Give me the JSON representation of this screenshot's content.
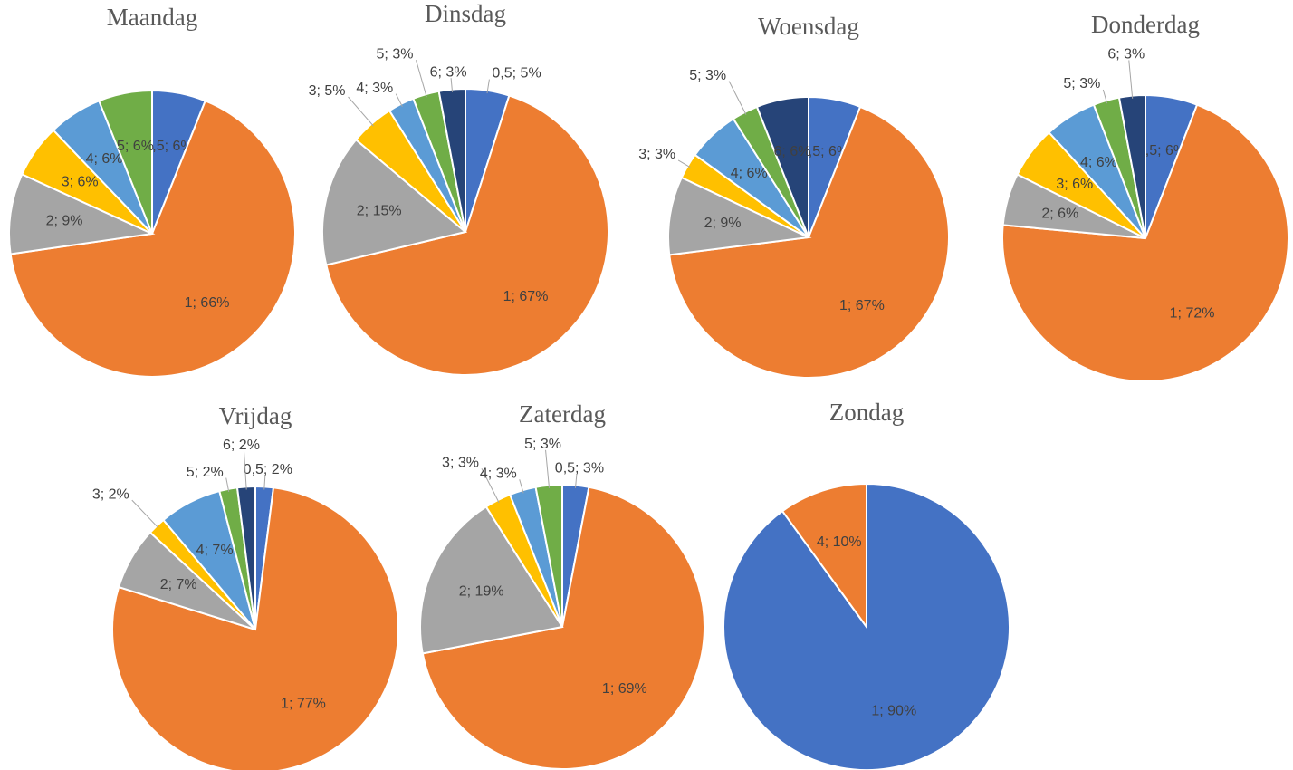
{
  "chart_data": [
    {
      "type": "pie",
      "title": "Maandag",
      "values": [
        6,
        66,
        9,
        6,
        6,
        6
      ],
      "value_labels": [
        "0,5; 6%",
        "1; 66%",
        "2; 9%",
        "3; 6%",
        "4; 6%",
        "5; 6%"
      ],
      "colors": [
        "#4472c4",
        "#ed7d31",
        "#a5a5a5",
        "#ffc000",
        "#5b9bd5",
        "#70ad47"
      ]
    },
    {
      "type": "pie",
      "title": "Dinsdag",
      "values": [
        5,
        67,
        15,
        5,
        3,
        3,
        3
      ],
      "value_labels": [
        "0,5; 5%",
        "1; 67%",
        "2; 15%",
        "3; 5%",
        "4; 3%",
        "5; 3%",
        "6; 3%"
      ],
      "colors": [
        "#4472c4",
        "#ed7d31",
        "#a5a5a5",
        "#ffc000",
        "#5b9bd5",
        "#70ad47",
        "#264478"
      ]
    },
    {
      "type": "pie",
      "title": "Woensdag",
      "values": [
        6,
        67,
        9,
        3,
        6,
        3,
        6
      ],
      "value_labels": [
        "0,5; 6%",
        "1; 67%",
        "2; 9%",
        "3; 3%",
        "4; 6%",
        "5; 3%",
        "6; 6%"
      ],
      "colors": [
        "#4472c4",
        "#ed7d31",
        "#a5a5a5",
        "#ffc000",
        "#5b9bd5",
        "#70ad47",
        "#264478"
      ]
    },
    {
      "type": "pie",
      "title": "Donderdag",
      "values": [
        6,
        72,
        6,
        6,
        6,
        3,
        3
      ],
      "value_labels": [
        "0,5; 6%",
        "1; 72%",
        "2; 6%",
        "3; 6%",
        "4; 6%",
        "5; 3%",
        "6; 3%"
      ],
      "colors": [
        "#4472c4",
        "#ed7d31",
        "#a5a5a5",
        "#ffc000",
        "#5b9bd5",
        "#70ad47",
        "#264478"
      ]
    },
    {
      "type": "pie",
      "title": "Vrijdag",
      "values": [
        2,
        77,
        7,
        2,
        7,
        2,
        2
      ],
      "value_labels": [
        "0,5; 2%",
        "1; 77%",
        "2; 7%",
        "3; 2%",
        "4; 7%",
        "5; 2%",
        "6; 2%"
      ],
      "colors": [
        "#4472c4",
        "#ed7d31",
        "#a5a5a5",
        "#ffc000",
        "#5b9bd5",
        "#70ad47",
        "#264478"
      ]
    },
    {
      "type": "pie",
      "title": "Zaterdag",
      "values": [
        3,
        69,
        19,
        3,
        3,
        3
      ],
      "value_labels": [
        "0,5; 3%",
        "1; 69%",
        "2; 19%",
        "3; 3%",
        "4; 3%",
        "5; 3%"
      ],
      "colors": [
        "#4472c4",
        "#ed7d31",
        "#a5a5a5",
        "#ffc000",
        "#5b9bd5",
        "#70ad47"
      ]
    },
    {
      "type": "pie",
      "title": "Zondag",
      "values": [
        90,
        10
      ],
      "value_labels": [
        "1; 90%",
        "4; 10%"
      ],
      "colors": [
        "#4472c4",
        "#ed7d31"
      ]
    }
  ]
}
